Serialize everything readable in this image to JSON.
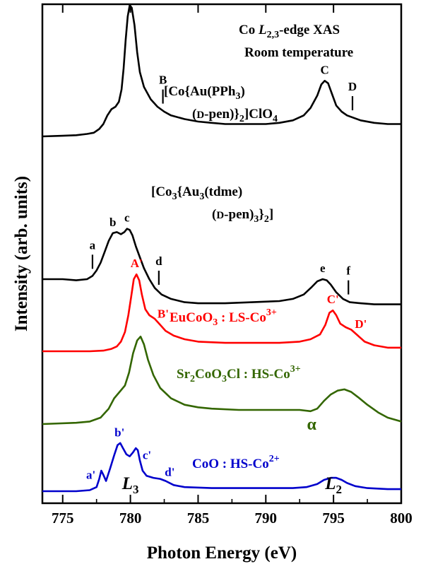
{
  "chart_data": {
    "type": "line",
    "title_lines": [
      "Co L2,3-edge XAS",
      "Room temperature"
    ],
    "xlabel": "Photon Energy (eV)",
    "ylabel": "Intensity (arb. units)",
    "xlim": [
      773.5,
      800
    ],
    "xticks": [
      775,
      780,
      785,
      790,
      795,
      800
    ],
    "y_ticks_shown": false,
    "grid": false,
    "legend": "none",
    "series": [
      {
        "label_lines": [
          "[Co{Au(PPh3)",
          "(D-pen)}2]ClO4"
        ],
        "color": "#000000",
        "offset": 0.0,
        "points": [
          [
            773.5,
            0.0
          ],
          [
            775.0,
            0.005
          ],
          [
            776.0,
            0.01
          ],
          [
            776.8,
            0.02
          ],
          [
            777.3,
            0.03
          ],
          [
            777.7,
            0.06
          ],
          [
            778.0,
            0.1
          ],
          [
            778.3,
            0.17
          ],
          [
            778.6,
            0.22
          ],
          [
            778.9,
            0.24
          ],
          [
            779.15,
            0.28
          ],
          [
            779.35,
            0.38
          ],
          [
            779.5,
            0.55
          ],
          [
            779.65,
            0.78
          ],
          [
            779.8,
            0.97
          ],
          [
            779.95,
            1.06
          ],
          [
            780.1,
            1.04
          ],
          [
            780.3,
            0.9
          ],
          [
            780.5,
            0.68
          ],
          [
            780.7,
            0.52
          ],
          [
            781.0,
            0.4
          ],
          [
            781.5,
            0.3
          ],
          [
            782.0,
            0.24
          ],
          [
            782.5,
            0.2
          ],
          [
            783.0,
            0.17
          ],
          [
            784.0,
            0.14
          ],
          [
            785.0,
            0.12
          ],
          [
            786.0,
            0.11
          ],
          [
            787.0,
            0.1
          ],
          [
            788.0,
            0.1
          ],
          [
            789.0,
            0.1
          ],
          [
            790.0,
            0.1
          ],
          [
            791.0,
            0.11
          ],
          [
            792.0,
            0.13
          ],
          [
            792.8,
            0.17
          ],
          [
            793.3,
            0.23
          ],
          [
            793.8,
            0.33
          ],
          [
            794.1,
            0.42
          ],
          [
            794.35,
            0.45
          ],
          [
            794.6,
            0.43
          ],
          [
            794.9,
            0.34
          ],
          [
            795.2,
            0.25
          ],
          [
            795.6,
            0.2
          ],
          [
            796.0,
            0.17
          ],
          [
            796.5,
            0.15
          ],
          [
            797.0,
            0.13
          ],
          [
            798.0,
            0.11
          ],
          [
            799.0,
            0.1
          ],
          [
            800.0,
            0.1
          ]
        ]
      },
      {
        "label_lines": [
          "[Co3{Au3(tdme)",
          "(D-pen)3}2]"
        ],
        "color": "#000000",
        "offset": 1.0,
        "points": [
          [
            773.5,
            0.0
          ],
          [
            775.0,
            0.0
          ],
          [
            776.0,
            -0.01
          ],
          [
            776.8,
            0.0
          ],
          [
            777.2,
            0.03
          ],
          [
            777.5,
            0.08
          ],
          [
            777.8,
            0.15
          ],
          [
            778.1,
            0.25
          ],
          [
            778.4,
            0.35
          ],
          [
            778.7,
            0.42
          ],
          [
            779.0,
            0.43
          ],
          [
            779.3,
            0.41
          ],
          [
            779.55,
            0.43
          ],
          [
            779.75,
            0.46
          ],
          [
            779.95,
            0.45
          ],
          [
            780.15,
            0.4
          ],
          [
            780.4,
            0.3
          ],
          [
            780.7,
            0.2
          ],
          [
            781.0,
            0.1
          ],
          [
            781.4,
            0.0
          ],
          [
            781.8,
            -0.08
          ],
          [
            782.3,
            -0.14
          ],
          [
            783.0,
            -0.18
          ],
          [
            784.0,
            -0.21
          ],
          [
            785.0,
            -0.22
          ],
          [
            787.0,
            -0.22
          ],
          [
            789.0,
            -0.21
          ],
          [
            791.0,
            -0.2
          ],
          [
            792.0,
            -0.18
          ],
          [
            792.8,
            -0.14
          ],
          [
            793.4,
            -0.07
          ],
          [
            793.8,
            -0.02
          ],
          [
            794.2,
            0.0
          ],
          [
            794.5,
            -0.01
          ],
          [
            794.8,
            -0.05
          ],
          [
            795.2,
            -0.12
          ],
          [
            795.7,
            -0.18
          ],
          [
            796.2,
            -0.21
          ],
          [
            797.0,
            -0.22
          ],
          [
            798.0,
            -0.23
          ],
          [
            800.0,
            -0.23
          ]
        ]
      },
      {
        "label_lines": [
          "EuCoO3 : LS-Co3+"
        ],
        "color": "#ff0000",
        "offset": 2.0,
        "points": [
          [
            773.5,
            0.0
          ],
          [
            777.0,
            0.0
          ],
          [
            778.0,
            0.005
          ],
          [
            778.6,
            0.02
          ],
          [
            779.0,
            0.04
          ],
          [
            779.3,
            0.08
          ],
          [
            779.6,
            0.16
          ],
          [
            779.85,
            0.3
          ],
          [
            780.05,
            0.45
          ],
          [
            780.25,
            0.6
          ],
          [
            780.45,
            0.64
          ],
          [
            780.65,
            0.59
          ],
          [
            780.85,
            0.47
          ],
          [
            781.1,
            0.35
          ],
          [
            781.4,
            0.3
          ],
          [
            781.8,
            0.27
          ],
          [
            782.2,
            0.22
          ],
          [
            782.6,
            0.17
          ],
          [
            783.2,
            0.13
          ],
          [
            784.0,
            0.1
          ],
          [
            785.0,
            0.08
          ],
          [
            787.0,
            0.07
          ],
          [
            789.0,
            0.07
          ],
          [
            791.0,
            0.07
          ],
          [
            792.5,
            0.08
          ],
          [
            793.3,
            0.1
          ],
          [
            794.0,
            0.14
          ],
          [
            794.4,
            0.22
          ],
          [
            794.7,
            0.32
          ],
          [
            794.95,
            0.34
          ],
          [
            795.2,
            0.3
          ],
          [
            795.5,
            0.23
          ],
          [
            795.9,
            0.2
          ],
          [
            796.3,
            0.18
          ],
          [
            796.8,
            0.13
          ],
          [
            797.3,
            0.08
          ],
          [
            798.0,
            0.05
          ],
          [
            799.0,
            0.03
          ],
          [
            800.0,
            0.03
          ]
        ]
      },
      {
        "label_lines": [
          "Sr2CoO3Cl : HS-Co3+"
        ],
        "color": "#336600",
        "offset": 3.0,
        "points": [
          [
            773.5,
            0.0
          ],
          [
            776.0,
            0.01
          ],
          [
            777.0,
            0.02
          ],
          [
            777.8,
            0.05
          ],
          [
            778.4,
            0.12
          ],
          [
            778.8,
            0.2
          ],
          [
            779.2,
            0.25
          ],
          [
            779.6,
            0.3
          ],
          [
            779.9,
            0.4
          ],
          [
            780.2,
            0.55
          ],
          [
            780.5,
            0.65
          ],
          [
            780.75,
            0.68
          ],
          [
            781.0,
            0.62
          ],
          [
            781.3,
            0.5
          ],
          [
            781.7,
            0.38
          ],
          [
            782.2,
            0.28
          ],
          [
            783.0,
            0.2
          ],
          [
            784.0,
            0.15
          ],
          [
            785.0,
            0.13
          ],
          [
            786.0,
            0.12
          ],
          [
            788.0,
            0.11
          ],
          [
            790.0,
            0.11
          ],
          [
            791.5,
            0.11
          ],
          [
            792.5,
            0.11
          ],
          [
            793.3,
            0.1
          ],
          [
            793.8,
            0.12
          ],
          [
            794.3,
            0.18
          ],
          [
            794.8,
            0.23
          ],
          [
            795.3,
            0.26
          ],
          [
            795.8,
            0.27
          ],
          [
            796.3,
            0.25
          ],
          [
            796.8,
            0.21
          ],
          [
            797.5,
            0.15
          ],
          [
            798.3,
            0.09
          ],
          [
            799.0,
            0.05
          ],
          [
            800.0,
            0.02
          ]
        ]
      },
      {
        "label_lines": [
          "CoO : HS-Co2+"
        ],
        "color": "#0000cc",
        "offset": 4.0,
        "points": [
          [
            773.5,
            0.0
          ],
          [
            776.0,
            0.0
          ],
          [
            777.0,
            0.01
          ],
          [
            777.5,
            0.04
          ],
          [
            777.7,
            0.12
          ],
          [
            777.85,
            0.2
          ],
          [
            778.0,
            0.16
          ],
          [
            778.2,
            0.1
          ],
          [
            778.5,
            0.22
          ],
          [
            778.8,
            0.35
          ],
          [
            779.05,
            0.45
          ],
          [
            779.25,
            0.47
          ],
          [
            779.45,
            0.42
          ],
          [
            779.7,
            0.36
          ],
          [
            779.95,
            0.34
          ],
          [
            780.2,
            0.38
          ],
          [
            780.4,
            0.42
          ],
          [
            780.55,
            0.4
          ],
          [
            780.7,
            0.3
          ],
          [
            780.9,
            0.2
          ],
          [
            781.2,
            0.15
          ],
          [
            781.7,
            0.13
          ],
          [
            782.2,
            0.12
          ],
          [
            782.6,
            0.1
          ],
          [
            783.2,
            0.06
          ],
          [
            784.0,
            0.04
          ],
          [
            786.0,
            0.03
          ],
          [
            790.0,
            0.03
          ],
          [
            792.0,
            0.03
          ],
          [
            793.0,
            0.04
          ],
          [
            793.8,
            0.07
          ],
          [
            794.3,
            0.11
          ],
          [
            794.8,
            0.13
          ],
          [
            795.2,
            0.13
          ],
          [
            795.6,
            0.11
          ],
          [
            796.0,
            0.08
          ],
          [
            796.6,
            0.05
          ],
          [
            797.5,
            0.03
          ],
          [
            799.0,
            0.02
          ],
          [
            800.0,
            0.02
          ]
        ]
      }
    ],
    "peak_labels": [
      {
        "text": "A",
        "x": 780.0,
        "series": 0,
        "color": "#000000"
      },
      {
        "text": "C",
        "x": 794.35,
        "series": 0,
        "color": "#000000"
      },
      {
        "text": "b",
        "x": 778.7,
        "series": 1,
        "color": "#000000"
      },
      {
        "text": "c",
        "x": 779.75,
        "series": 1,
        "color": "#000000"
      },
      {
        "text": "e",
        "x": 794.2,
        "series": 1,
        "color": "#000000"
      },
      {
        "text": "A'",
        "x": 780.45,
        "series": 2,
        "color": "#ff0000"
      },
      {
        "text": "C'",
        "x": 794.95,
        "series": 2,
        "color": "#ff0000"
      },
      {
        "text": "D'",
        "x": 796.5,
        "series": 2,
        "color": "#ff0000"
      },
      {
        "text": "B'",
        "x": 782.0,
        "series": 2,
        "color": "#ff0000"
      },
      {
        "text": "a'",
        "x": 777.6,
        "series": 4,
        "color": "#0000cc"
      },
      {
        "text": "b'",
        "x": 779.2,
        "series": 4,
        "color": "#0000cc"
      },
      {
        "text": "c'",
        "x": 780.7,
        "series": 4,
        "color": "#0000cc"
      },
      {
        "text": "d'",
        "x": 782.7,
        "series": 4,
        "color": "#0000cc"
      }
    ],
    "marker_labels": [
      {
        "text": "B",
        "x": 782.4,
        "series": 0
      },
      {
        "text": "D",
        "x": 796.4,
        "series": 0
      },
      {
        "text": "a",
        "x": 777.2,
        "series": 1
      },
      {
        "text": "d",
        "x": 782.1,
        "series": 1
      },
      {
        "text": "f",
        "x": 796.1,
        "series": 1
      }
    ],
    "extra_annotations": [
      {
        "text": "α",
        "x": 793.8,
        "series": 3,
        "color": "#336600"
      },
      {
        "text": "L3",
        "x": 780.0,
        "series": 4,
        "color": "#000000"
      },
      {
        "text": "L2",
        "x": 795.0,
        "series": 4,
        "color": "#000000"
      }
    ]
  }
}
